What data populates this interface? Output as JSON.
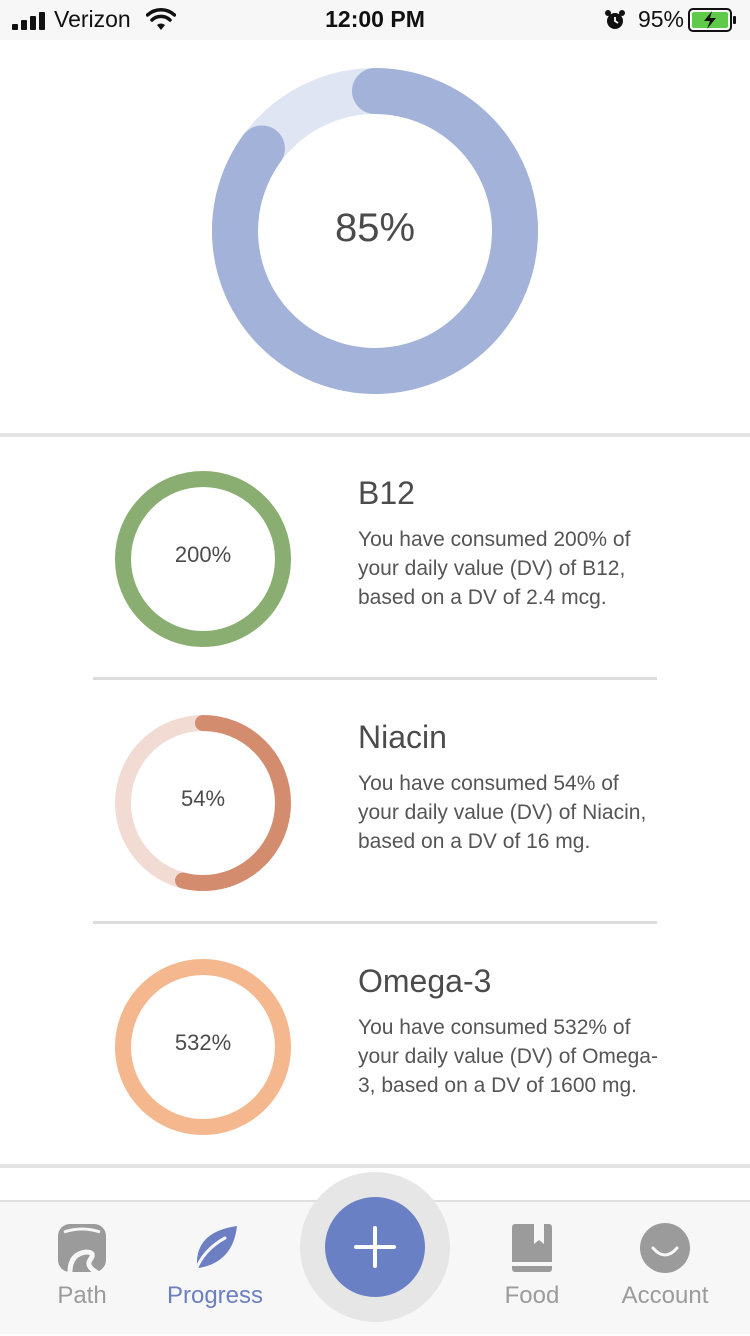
{
  "status_bar": {
    "carrier": "Verizon",
    "time": "12:00 PM",
    "battery": "95%",
    "icons": [
      "signal-icon",
      "wifi-icon",
      "alarm-icon",
      "battery-charging-icon"
    ]
  },
  "overall": {
    "percent_label": "85%",
    "progress": 0.85,
    "ring_color": "#a3b2d9",
    "track_color": "#dfe5f3"
  },
  "nutrients": [
    {
      "name": "B12",
      "percent_label": "200%",
      "progress": 1.0,
      "description": "You have consumed 200% of your daily value (DV) of B12, based on a DV of 2.4 mcg.",
      "ring_color": "#8aae72",
      "track_color": "#dfe9d7"
    },
    {
      "name": "Niacin",
      "percent_label": "54%",
      "progress": 0.54,
      "description": "You have consumed 54% of your daily value (DV) of Niacin, based on a DV of 16 mg.",
      "ring_color": "#d48c6f",
      "track_color": "#f1dbd2"
    },
    {
      "name": "Omega-3",
      "percent_label": "532%",
      "progress": 1.0,
      "description": "You have consumed 532% of your daily value (DV) of Omega-3, based on a DV of 1600 mg.",
      "ring_color": "#f4b78e",
      "track_color": "#fbe6d8"
    }
  ],
  "tab_bar": {
    "tabs": [
      {
        "label": "Path",
        "icon": "path-icon",
        "active": false
      },
      {
        "label": "Progress",
        "icon": "leaf-icon",
        "active": true
      },
      {
        "label": "Food",
        "icon": "book-icon",
        "active": false
      },
      {
        "label": "Account",
        "icon": "account-icon",
        "active": false
      }
    ],
    "add_icon": "plus-icon",
    "active_color": "#6b7fc2",
    "inactive_color": "#9b9b9b"
  }
}
